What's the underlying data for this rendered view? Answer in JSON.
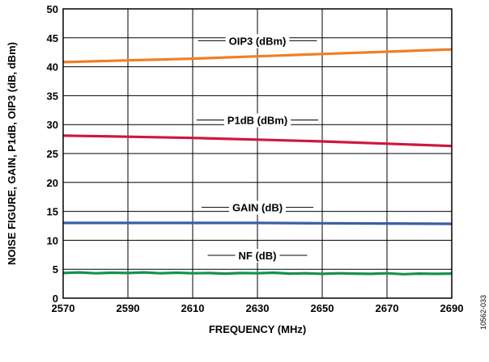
{
  "figure_id": "10562-033",
  "chart_data": {
    "type": "line",
    "xlabel": "FREQUENCY (MHz)",
    "ylabel": "NOISE FIGURE, GAIN, P1dB, OIP3 (dB, dBm)",
    "xlim": [
      2570,
      2690
    ],
    "ylim": [
      0,
      50
    ],
    "xticks": [
      "2570",
      "2590",
      "2610",
      "2630",
      "2650",
      "2670",
      "2690"
    ],
    "yticks": [
      "0",
      "5",
      "10",
      "15",
      "20",
      "25",
      "30",
      "35",
      "40",
      "45",
      "50"
    ],
    "grid": true,
    "series": [
      {
        "name": "OIP3 (dBm)",
        "color": "#f07f26",
        "label_x": 2630,
        "label_y": 44.5,
        "x": [
          2570,
          2590,
          2610,
          2630,
          2650,
          2670,
          2690
        ],
        "y": [
          40.8,
          41.1,
          41.4,
          41.8,
          42.2,
          42.6,
          43.0
        ]
      },
      {
        "name": "P1dB (dBm)",
        "color": "#d0163e",
        "label_x": 2630,
        "label_y": 30.8,
        "x": [
          2570,
          2590,
          2610,
          2630,
          2650,
          2670,
          2690
        ],
        "y": [
          28.1,
          27.9,
          27.7,
          27.4,
          27.1,
          26.7,
          26.3
        ]
      },
      {
        "name": "GAIN (dB)",
        "color": "#3b5ea6",
        "label_x": 2630,
        "label_y": 15.7,
        "x": [
          2570,
          2590,
          2610,
          2630,
          2650,
          2670,
          2690
        ],
        "y": [
          13.0,
          13.0,
          13.0,
          13.0,
          12.95,
          12.9,
          12.85
        ]
      },
      {
        "name": "NF (dB)",
        "color": "#17924a",
        "label_x": 2630,
        "label_y": 7.4,
        "x": [
          2570,
          2575,
          2580,
          2585,
          2590,
          2595,
          2600,
          2605,
          2610,
          2615,
          2620,
          2625,
          2630,
          2635,
          2640,
          2645,
          2650,
          2655,
          2660,
          2665,
          2670,
          2675,
          2680,
          2685,
          2690
        ],
        "y": [
          4.35,
          4.45,
          4.3,
          4.4,
          4.35,
          4.45,
          4.3,
          4.4,
          4.3,
          4.35,
          4.25,
          4.35,
          4.3,
          4.4,
          4.25,
          4.3,
          4.2,
          4.3,
          4.25,
          4.2,
          4.3,
          4.15,
          4.25,
          4.2,
          4.25
        ]
      }
    ]
  }
}
